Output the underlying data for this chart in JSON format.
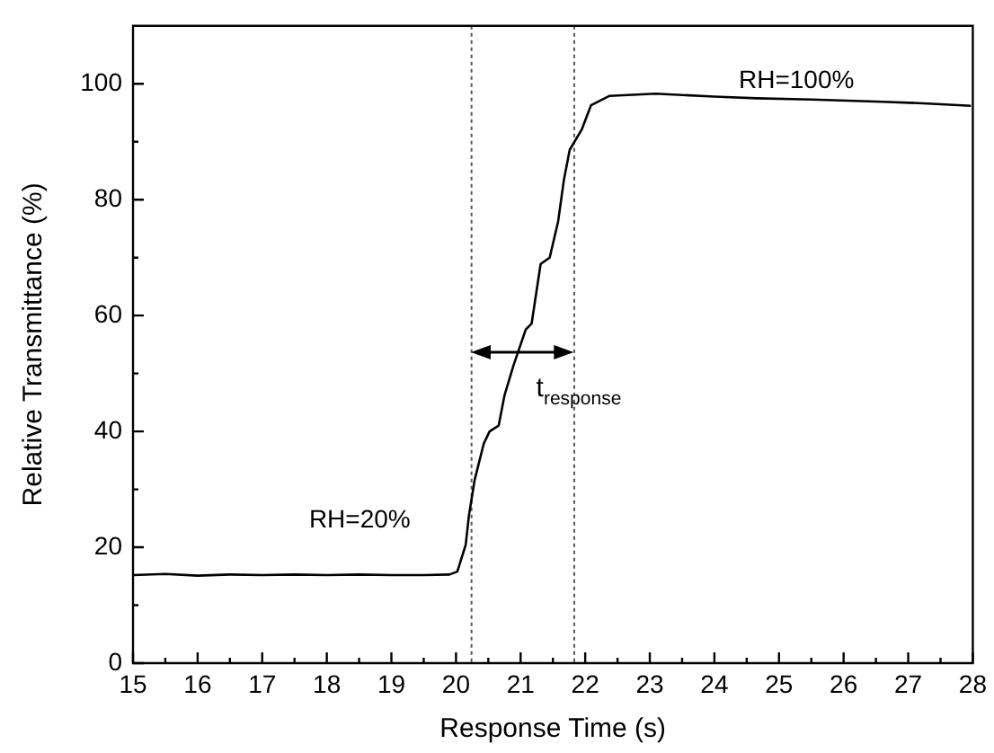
{
  "chart_data": {
    "type": "line",
    "xlabel": "Response Time (s)",
    "ylabel": "Relative Transmittance (%)",
    "x": [
      15,
      15.5,
      16,
      16.5,
      17,
      17.5,
      18,
      18.5,
      19,
      19.5,
      19.9,
      20.02,
      20.15,
      20.2,
      20.29,
      20.43,
      20.52,
      20.66,
      20.75,
      20.89,
      21.08,
      21.17,
      21.31,
      21.45,
      21.58,
      21.67,
      21.76,
      21.95,
      22.09,
      22.37,
      23.09,
      24,
      24.65,
      25.5,
      26.6,
      27.3,
      27.97
    ],
    "series": [
      {
        "color": "#000000",
        "values": [
          15.2,
          15.4,
          15.1,
          15.3,
          15.2,
          15.3,
          15.2,
          15.3,
          15.2,
          15.2,
          15.3,
          15.8,
          20.4,
          25.5,
          31.7,
          37.9,
          40,
          41,
          46.2,
          51.4,
          57.6,
          58.6,
          68.9,
          70,
          76.2,
          83.4,
          88.6,
          92.2,
          96.3,
          97.9,
          98.3,
          97.8,
          97.5,
          97.3,
          96.9,
          96.6,
          96.2
        ]
      }
    ],
    "xlim": [
      15,
      28
    ],
    "ylim": [
      0,
      110
    ],
    "xticks": [
      15,
      {
        "value": 15.5,
        "label": null
      },
      16,
      {
        "value": 16.5,
        "label": null
      },
      17,
      {
        "value": 17.5,
        "label": null
      },
      18,
      {
        "value": 18.5,
        "label": null
      },
      19,
      {
        "value": 19.5,
        "label": null
      },
      20,
      {
        "value": 20.5,
        "label": null
      },
      21,
      {
        "value": 21.5,
        "label": null
      },
      22,
      {
        "value": 22.5,
        "label": null
      },
      23,
      {
        "value": 23.5,
        "label": null
      },
      24,
      {
        "value": 24.5,
        "label": null
      },
      25,
      {
        "value": 25.5,
        "label": null
      },
      26,
      {
        "value": 26.5,
        "label": null
      },
      27,
      {
        "value": 27.5,
        "label": null
      },
      28
    ],
    "yticks": [
      0,
      {
        "value": 10,
        "label": null
      },
      20,
      {
        "value": 30,
        "label": null
      },
      40,
      {
        "value": 50,
        "label": null
      },
      60,
      {
        "value": 70,
        "label": null
      },
      80,
      {
        "value": 90,
        "label": null
      },
      100
    ],
    "ref_lines": [
      {
        "axis": "x",
        "value": 20.24,
        "color": "#555555",
        "line_style": "dotted"
      },
      {
        "axis": "x",
        "value": 21.83,
        "color": "#555555",
        "line_style": "dotted"
      }
    ],
    "annotations": [
      "RH=20%",
      "RH=100%",
      {
        "text": "t$_{response}$",
        "x": 21.9,
        "y": 46
      }
    ],
    "grid": false,
    "legend": false,
    "marker": "none",
    "line_style": "solid"
  }
}
